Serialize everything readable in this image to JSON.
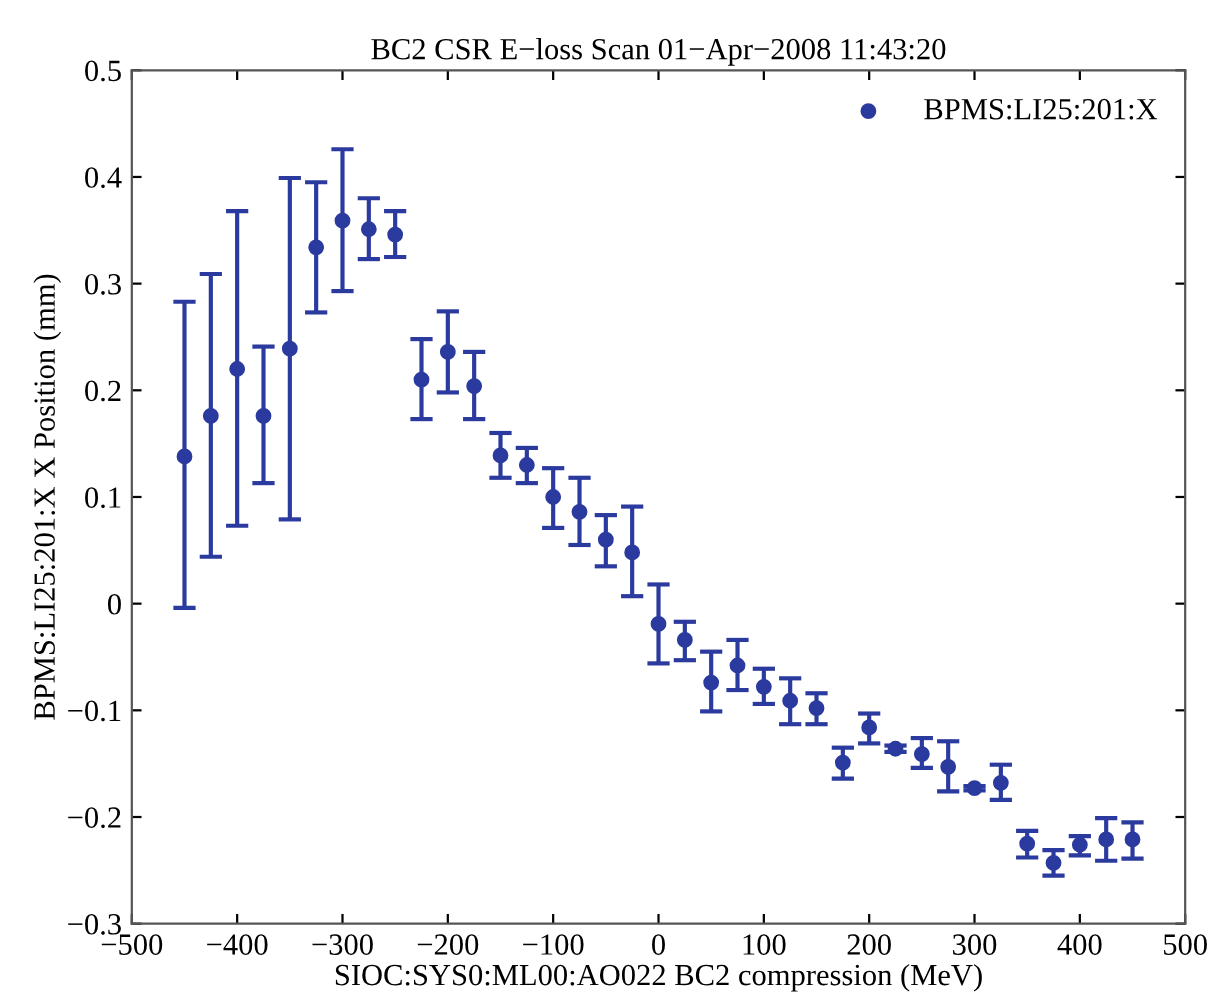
{
  "chart_data": {
    "type": "scatter",
    "title": "BC2 CSR E−loss Scan 01−Apr−2008 11:43:20",
    "xlabel": "SIOC:SYS0:ML00:AO022 BC2 compression (MeV)",
    "ylabel": "BPMS:LI25:201:X X Position (mm)",
    "x": [
      -450,
      -425,
      -400,
      -375,
      -350,
      -325,
      -300,
      -275,
      -250,
      -225,
      -200,
      -175,
      -150,
      -125,
      -100,
      -75,
      -50,
      -25,
      0,
      25,
      50,
      75,
      100,
      125,
      150,
      175,
      200,
      225,
      250,
      275,
      300,
      325,
      350,
      375,
      400,
      425,
      450
    ],
    "series": [
      {
        "name": "BPMS:LI25:201:X",
        "color": "#2b3a9e",
        "values": [
          0.138,
          0.176,
          0.22,
          0.176,
          0.239,
          0.334,
          0.359,
          0.351,
          0.346,
          0.21,
          0.236,
          0.204,
          0.139,
          0.13,
          0.1,
          0.086,
          0.06,
          0.048,
          -0.019,
          -0.034,
          -0.074,
          -0.058,
          -0.078,
          -0.091,
          -0.098,
          -0.149,
          -0.116,
          -0.136,
          -0.141,
          -0.153,
          -0.173,
          -0.168,
          -0.225,
          -0.243,
          -0.226,
          -0.221,
          -0.221
        ],
        "errors": [
          [
            -0.004,
            0.283
          ],
          [
            0.044,
            0.309
          ],
          [
            0.073,
            0.368
          ],
          [
            0.113,
            0.241
          ],
          [
            0.079,
            0.399
          ],
          [
            0.273,
            0.395
          ],
          [
            0.293,
            0.426
          ],
          [
            0.323,
            0.38
          ],
          [
            0.325,
            0.368
          ],
          [
            0.173,
            0.248
          ],
          [
            0.198,
            0.274
          ],
          [
            0.173,
            0.236
          ],
          [
            0.118,
            0.16
          ],
          [
            0.113,
            0.146
          ],
          [
            0.071,
            0.127
          ],
          [
            0.055,
            0.118
          ],
          [
            0.035,
            0.083
          ],
          [
            0.007,
            0.091
          ],
          [
            -0.056,
            0.018
          ],
          [
            -0.053,
            -0.017
          ],
          [
            -0.101,
            -0.045
          ],
          [
            -0.081,
            -0.034
          ],
          [
            -0.094,
            -0.061
          ],
          [
            -0.113,
            -0.07
          ],
          [
            -0.113,
            -0.084
          ],
          [
            -0.164,
            -0.135
          ],
          [
            -0.131,
            -0.103
          ],
          [
            -0.139,
            -0.133
          ],
          [
            -0.154,
            -0.126
          ],
          [
            -0.176,
            -0.129
          ],
          [
            -0.175,
            -0.171
          ],
          [
            -0.184,
            -0.151
          ],
          [
            -0.238,
            -0.213
          ],
          [
            -0.255,
            -0.231
          ],
          [
            -0.236,
            -0.218
          ],
          [
            -0.241,
            -0.201
          ],
          [
            -0.239,
            -0.205
          ]
        ]
      }
    ],
    "xlim": [
      -500,
      500
    ],
    "xticks": [
      -500,
      -400,
      -300,
      -200,
      -100,
      0,
      100,
      200,
      300,
      400,
      500
    ],
    "ylim": [
      -0.3,
      0.5
    ],
    "yticks": [
      -0.3,
      -0.2,
      -0.1,
      0,
      0.1,
      0.2,
      0.3,
      0.4,
      0.5
    ],
    "marker": "circle",
    "legend": "top right",
    "grid": false
  }
}
